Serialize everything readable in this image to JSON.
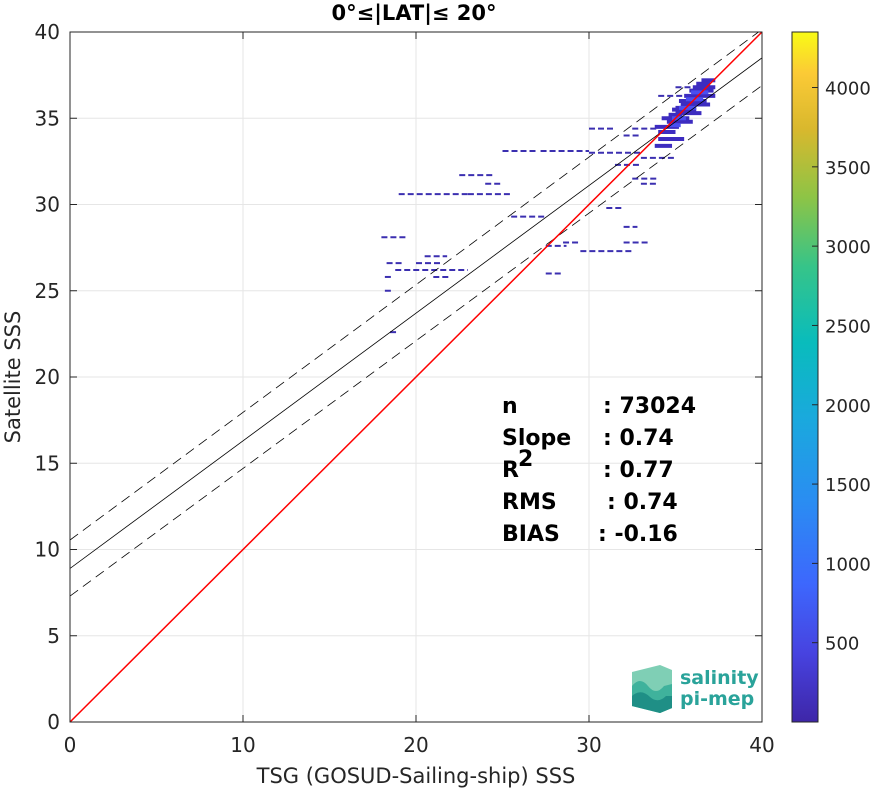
{
  "chart_data": {
    "type": "heatmap",
    "title": "0°≤|LAT|≤ 20°",
    "xlabel": "TSG (GOSUD-Sailing-ship) SSS",
    "ylabel": "Satellite SSS",
    "xlim": [
      0,
      40
    ],
    "ylim": [
      0,
      40
    ],
    "x_ticks": [
      "0",
      "10",
      "20",
      "30",
      "40"
    ],
    "y_ticks": [
      "0",
      "5",
      "10",
      "15",
      "20",
      "25",
      "30",
      "35",
      "40"
    ],
    "grid": true,
    "colorbar": {
      "ticks": [
        "500",
        "1000",
        "1500",
        "2000",
        "2500",
        "3000",
        "3500",
        "4000"
      ],
      "tick_values": [
        500,
        1000,
        1500,
        2000,
        2500,
        3000,
        3500,
        4000
      ],
      "range": [
        0,
        4350
      ],
      "colormap": "parula"
    },
    "lines": {
      "identity": {
        "slope": 1,
        "intercept": 0,
        "color": "#ff0000"
      },
      "fit": {
        "slope": 0.74,
        "intercept": 8.9,
        "color": "#000000"
      },
      "fit_upper": {
        "slope": 0.74,
        "intercept": 10.55,
        "color": "#000000",
        "dash": true
      },
      "fit_lower": {
        "slope": 0.74,
        "intercept": 7.3,
        "color": "#000000",
        "dash": true
      }
    },
    "stats": [
      {
        "label": "n",
        "value": ": 73024"
      },
      {
        "label": "Slope",
        "value": ": 0.74"
      },
      {
        "label": "R",
        "sup": "2",
        "value": ": 0.77"
      },
      {
        "label": "RMS",
        "value": ": 0.74"
      },
      {
        "label": "BIAS",
        "value": ": -0.16"
      }
    ],
    "segments": [
      [
        25.0,
        27.0,
        33.1
      ],
      [
        27.2,
        30.0,
        33.1
      ],
      [
        30.0,
        33.0,
        33.0
      ],
      [
        19.0,
        23.0,
        30.6
      ],
      [
        23.0,
        25.5,
        30.6
      ],
      [
        24.0,
        25.0,
        31.2
      ],
      [
        22.5,
        24.5,
        31.7
      ],
      [
        18.8,
        23.0,
        26.2
      ],
      [
        20.0,
        21.5,
        26.6
      ],
      [
        20.5,
        21.8,
        27.0
      ],
      [
        18.3,
        19.3,
        26.6
      ],
      [
        18.0,
        19.5,
        28.1
      ],
      [
        18.5,
        19.0,
        22.6
      ],
      [
        18.2,
        18.6,
        25.8
      ],
      [
        18.2,
        18.7,
        25.0
      ],
      [
        21.0,
        22.0,
        25.8
      ],
      [
        25.5,
        27.5,
        29.3
      ],
      [
        27.5,
        28.7,
        27.6
      ],
      [
        28.5,
        29.5,
        27.8
      ],
      [
        27.5,
        28.5,
        26.0
      ],
      [
        29.5,
        32.5,
        27.3
      ],
      [
        30.0,
        31.5,
        34.4
      ],
      [
        32.0,
        33.0,
        34.0
      ],
      [
        32.5,
        34.0,
        31.5
      ],
      [
        33.0,
        35.0,
        32.7
      ],
      [
        31.5,
        33.0,
        32.3
      ],
      [
        32.0,
        33.5,
        27.8
      ],
      [
        32.0,
        32.8,
        28.7
      ],
      [
        31.0,
        32.0,
        29.8
      ],
      [
        33.0,
        34.0,
        31.2
      ],
      [
        34.0,
        36.0,
        36.3
      ],
      [
        35.0,
        37.0,
        36.8
      ],
      [
        32.5,
        34.0,
        34.4
      ]
    ],
    "cluster": [
      [
        34.0,
        35.0,
        34.2
      ],
      [
        34.5,
        36.0,
        34.8
      ],
      [
        35.0,
        36.5,
        35.3
      ],
      [
        35.3,
        37.0,
        35.8
      ],
      [
        35.5,
        37.3,
        36.3
      ],
      [
        36.0,
        37.3,
        36.8
      ],
      [
        36.5,
        37.3,
        37.2
      ],
      [
        33.8,
        35.2,
        34.5
      ],
      [
        34.2,
        35.8,
        35.0
      ],
      [
        34.8,
        36.2,
        35.5
      ],
      [
        35.2,
        36.8,
        36.0
      ],
      [
        35.8,
        37.2,
        36.6
      ],
      [
        34.0,
        35.5,
        33.8
      ],
      [
        33.8,
        34.8,
        33.4
      ],
      [
        34.6,
        35.4,
        35.2
      ],
      [
        35.0,
        36.0,
        35.6
      ],
      [
        36.2,
        37.0,
        37.0
      ]
    ],
    "core": [
      [
        34.8,
        35.6,
        35.0
      ],
      [
        35.2,
        36.2,
        35.6
      ],
      [
        35.6,
        36.6,
        36.1
      ],
      [
        35.9,
        36.9,
        36.5
      ],
      [
        34.6,
        35.3,
        34.6
      ]
    ]
  },
  "logo": {
    "line1": "salinity",
    "line2": "pi-mep"
  }
}
